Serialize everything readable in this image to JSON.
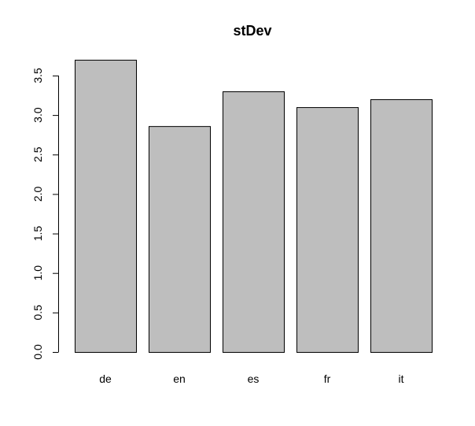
{
  "chart_data": {
    "type": "bar",
    "title": "stDev",
    "xlabel": "",
    "ylabel": "",
    "categories": [
      "de",
      "en",
      "es",
      "fr",
      "it"
    ],
    "values": [
      3.7,
      2.86,
      3.3,
      3.1,
      3.2
    ],
    "ylim": [
      0,
      3.7
    ],
    "yticks": [
      "0.0",
      "0.5",
      "1.0",
      "1.5",
      "2.0",
      "2.5",
      "3.0",
      "3.5"
    ],
    "grid": false,
    "legend": "none",
    "colors": {
      "bar_fill": "#bebebe",
      "bar_stroke": "#000000",
      "axis": "#000000",
      "background": "#ffffff"
    }
  }
}
